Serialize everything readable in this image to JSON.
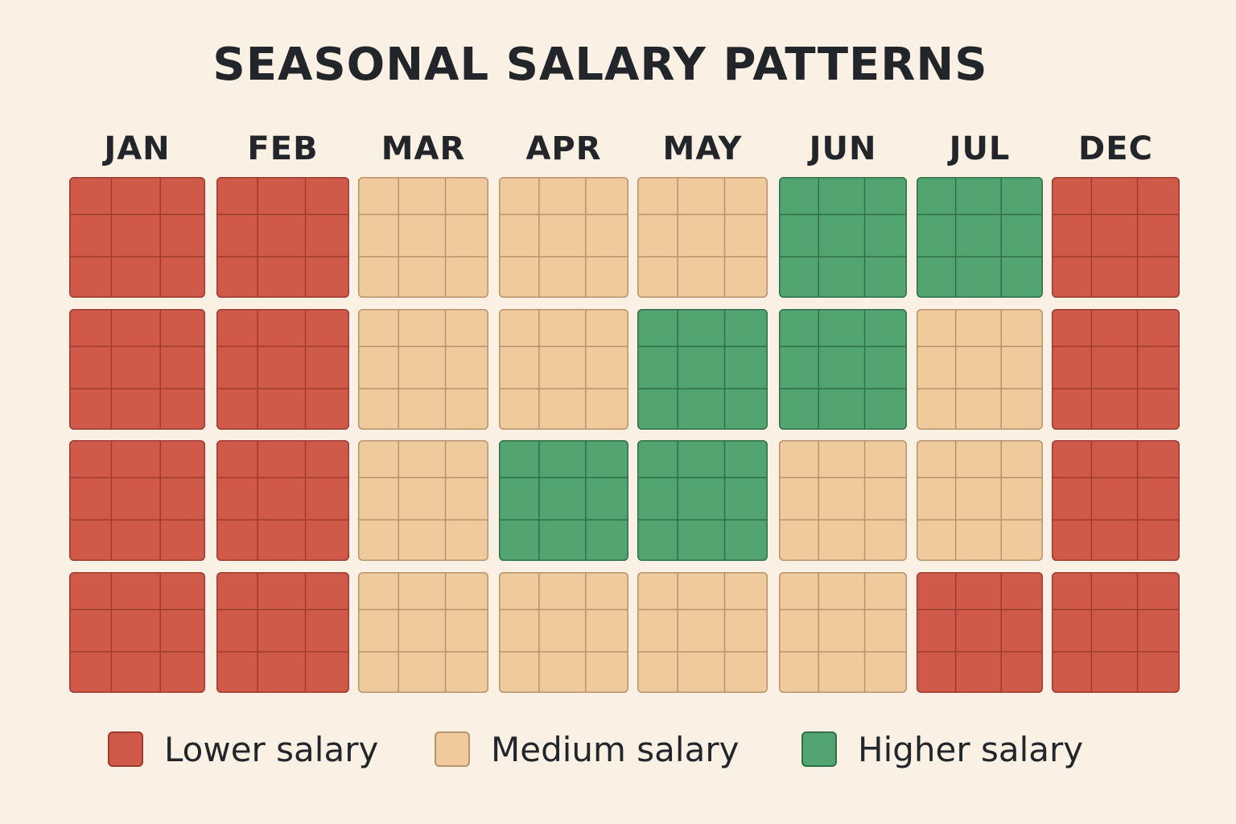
{
  "chart_data": {
    "type": "heatmap",
    "title": "SEASONAL SALARY PATTERNS",
    "columns": [
      "JAN",
      "FEB",
      "MAR",
      "APR",
      "MAY",
      "JUN",
      "JUL",
      "DEC"
    ],
    "grid": [
      [
        "low",
        "low",
        "medium",
        "medium",
        "medium",
        "high",
        "high",
        "low"
      ],
      [
        "low",
        "low",
        "medium",
        "medium",
        "high",
        "high",
        "medium",
        "low"
      ],
      [
        "low",
        "low",
        "medium",
        "high",
        "high",
        "medium",
        "medium",
        "low"
      ],
      [
        "low",
        "low",
        "medium",
        "medium",
        "medium",
        "medium",
        "low",
        "low"
      ]
    ],
    "levels": {
      "low": {
        "label": "Lower salary",
        "color": "#d05a4a",
        "line": "#9e3a2f"
      },
      "medium": {
        "label": "Medium salary",
        "color": "#f0c99c",
        "line": "#b8936b"
      },
      "high": {
        "label": "Higher salary",
        "color": "#52a571",
        "line": "#2f7048"
      }
    },
    "legend_position": "bottom",
    "legend": [
      {
        "level": "low",
        "label": "Lower salary"
      },
      {
        "level": "medium",
        "label": "Medium salary"
      },
      {
        "level": "high",
        "label": "Higher salary"
      }
    ]
  }
}
